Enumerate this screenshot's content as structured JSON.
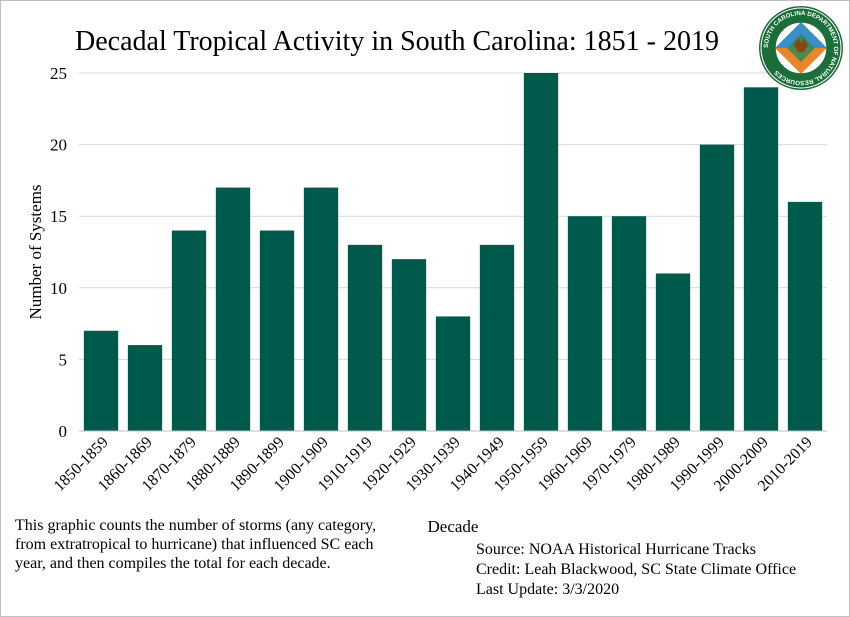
{
  "chart_data": {
    "type": "bar",
    "title": "Decadal Tropical Activity  in South Carolina: 1851 - 2019",
    "xlabel": "Decade",
    "ylabel": "Number of Systems",
    "ylim": [
      0,
      25
    ],
    "yticks": [
      0,
      5,
      10,
      15,
      20,
      25
    ],
    "grid": true,
    "bar_color": "#005a4b",
    "categories": [
      "1850-1859",
      "1860-1869",
      "1870-1879",
      "1880-1889",
      "1890-1899",
      "1900-1909",
      "1910-1919",
      "1920-1929",
      "1930-1939",
      "1940-1949",
      "1950-1959",
      "1960-1969",
      "1970-1979",
      "1980-1989",
      "1990-1999",
      "2000-2009",
      "2010-2019"
    ],
    "values": [
      7,
      6,
      14,
      17,
      14,
      17,
      13,
      12,
      8,
      13,
      25,
      15,
      15,
      11,
      20,
      24,
      16
    ]
  },
  "note": "This graphic counts the number of storms (any category, from extratropical to hurricane) that influenced SC each year, and then compiles the total for each decade.",
  "source": "Source: NOAA Historical Hurricane Tracks",
  "credit": "Credit: Leah Blackwood, SC State Climate Office",
  "last_update": "Last Update: 3/3/2020",
  "logo": {
    "icon": "scdnr-seal-icon",
    "text": "SOUTH CAROLINA DEPARTMENT OF NATURAL RESOURCES",
    "colors": {
      "ring": "#1b6e3a",
      "inner": "#ffffff",
      "field": "#e9862b",
      "sky": "#3a8fc9"
    }
  }
}
